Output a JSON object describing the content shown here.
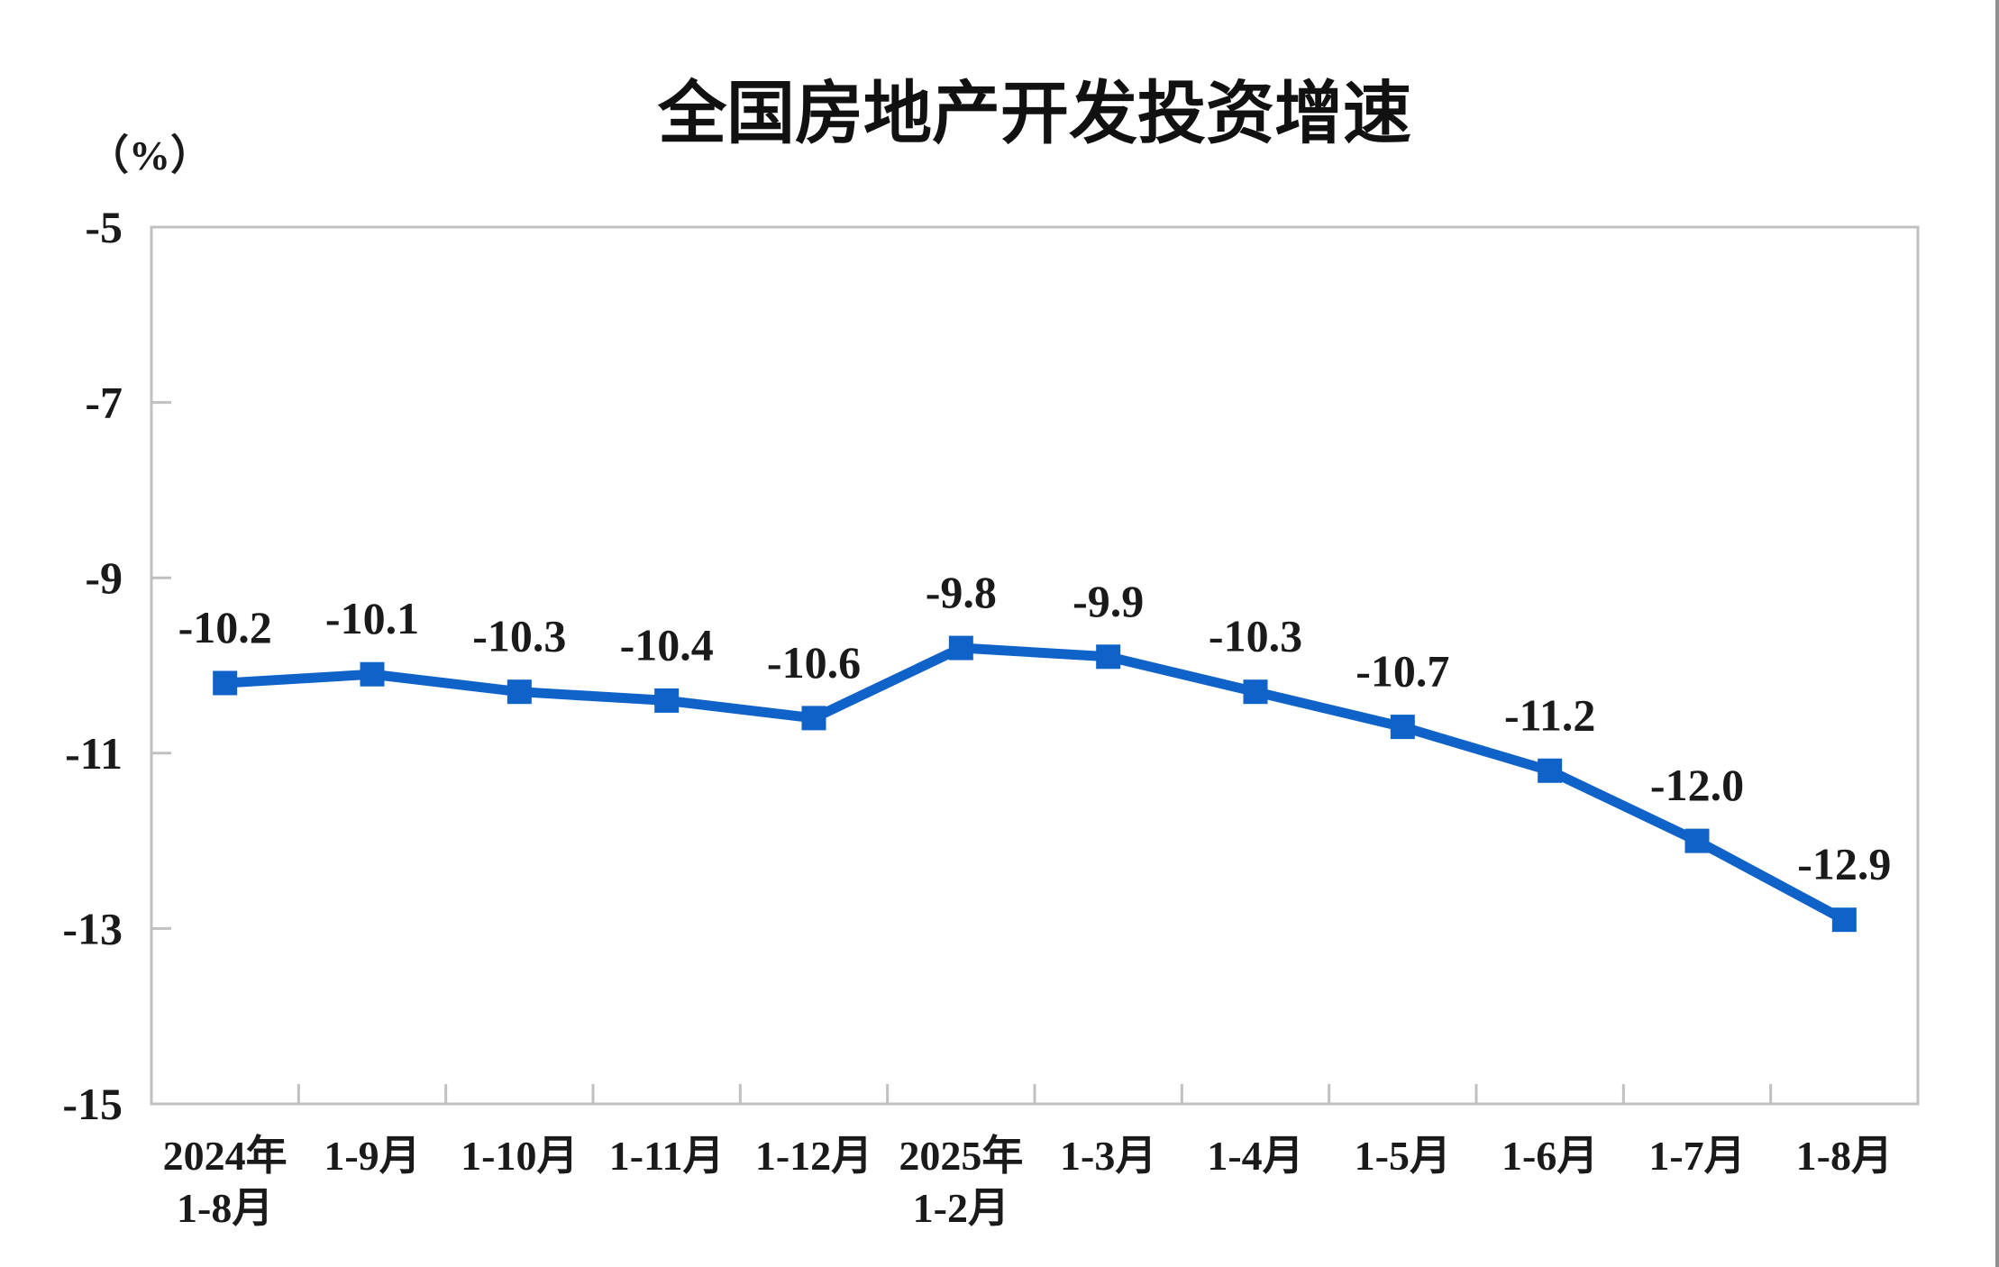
{
  "chart_data": {
    "type": "line",
    "title": "全国房地产开发投资增速",
    "unit_label": "（%）",
    "categories": [
      [
        "2024年",
        "1-8月"
      ],
      [
        "1-9月"
      ],
      [
        "1-10月"
      ],
      [
        "1-11月"
      ],
      [
        "1-12月"
      ],
      [
        "2025年",
        "1-2月"
      ],
      [
        "1-3月"
      ],
      [
        "1-4月"
      ],
      [
        "1-5月"
      ],
      [
        "1-6月"
      ],
      [
        "1-7月"
      ],
      [
        "1-8月"
      ]
    ],
    "values": [
      -10.2,
      -10.1,
      -10.3,
      -10.4,
      -10.6,
      -9.8,
      -9.9,
      -10.3,
      -10.7,
      -11.2,
      -12.0,
      -12.9
    ],
    "data_labels": [
      "-10.2",
      "-10.1",
      "-10.3",
      "-10.4",
      "-10.6",
      "-9.8",
      "-9.9",
      "-10.3",
      "-10.7",
      "-11.2",
      "-12.0",
      "-12.9"
    ],
    "ylim": [
      -15,
      -5
    ],
    "yticks": [
      -5,
      -7,
      -9,
      -11,
      -13,
      -15
    ],
    "ytick_labels": [
      "-5",
      "-7",
      "-9",
      "-11",
      "-13",
      "-15"
    ],
    "grid": false,
    "legend_position": "none",
    "series_name": "全国房地产开发投资增速",
    "line_color": "#0F63C8",
    "marker": "square",
    "axis_color": "#C0C0C0",
    "text_color": "#1a1a1a"
  }
}
